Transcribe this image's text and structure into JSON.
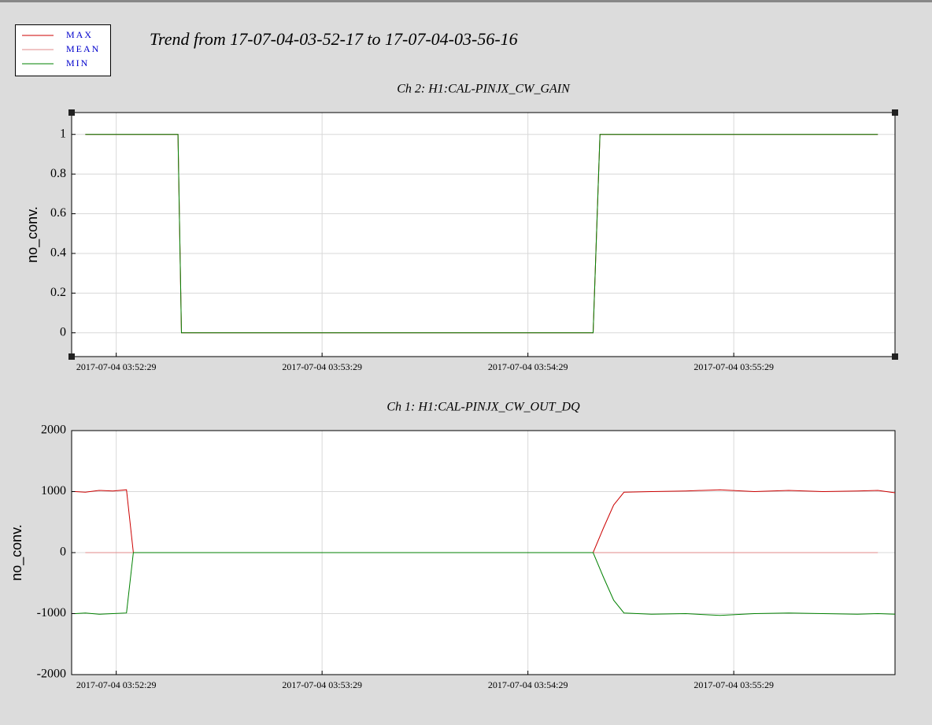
{
  "title": "Trend from 17-07-04-03-52-17 to 17-07-04-03-56-16",
  "chart_data": [
    {
      "type": "line",
      "title": "Ch 2: H1:CAL-PINJX_CW_GAIN",
      "y_label": "no_conv.",
      "x": [
        "2017-07-04 03:52:20",
        "2017-07-04 03:52:47",
        "2017-07-04 03:52:48",
        "2017-07-04 03:54:48",
        "2017-07-04 03:54:50",
        "2017-07-04 03:56:11"
      ],
      "series": [
        {
          "name": "MAX",
          "color": "#cc0000",
          "values": [
            1,
            1,
            0,
            0,
            1,
            1
          ]
        },
        {
          "name": "MEAN",
          "color": "#e08a8a",
          "values": [
            1,
            1,
            0,
            0,
            1,
            1
          ]
        },
        {
          "name": "MIN",
          "color": "#008000",
          "values": [
            1,
            1,
            0,
            0,
            1,
            1
          ]
        }
      ],
      "xlim": [
        "2017-07-04 03:52:16",
        "2017-07-04 03:56:16"
      ],
      "xticks": [
        "2017-07-04 03:52:29",
        "2017-07-04 03:53:29",
        "2017-07-04 03:54:29",
        "2017-07-04 03:55:29"
      ],
      "ylim": [
        -0.12,
        1.11
      ],
      "yticks": [
        0,
        0.2,
        0.4,
        0.6,
        0.8,
        1
      ],
      "grid": true
    },
    {
      "type": "line",
      "title": "Ch 1: H1:CAL-PINJX_CW_OUT_DQ",
      "y_label": "no_conv.",
      "x": [
        "2017-07-04 03:52:17",
        "2017-07-04 03:52:20",
        "2017-07-04 03:52:24",
        "2017-07-04 03:52:28",
        "2017-07-04 03:52:32",
        "2017-07-04 03:52:34",
        "2017-07-04 03:54:48",
        "2017-07-04 03:54:51",
        "2017-07-04 03:54:54",
        "2017-07-04 03:54:57",
        "2017-07-04 03:55:05",
        "2017-07-04 03:55:15",
        "2017-07-04 03:55:25",
        "2017-07-04 03:55:35",
        "2017-07-04 03:55:45",
        "2017-07-04 03:55:55",
        "2017-07-04 03:56:05",
        "2017-07-04 03:56:11",
        "2017-07-04 03:56:16"
      ],
      "series": [
        {
          "name": "MAX",
          "color": "#cc0000",
          "values": [
            1000,
            990,
            1020,
            1010,
            1030,
            0,
            0,
            400,
            780,
            990,
            1000,
            1010,
            1030,
            1000,
            1020,
            1000,
            1010,
            1020,
            980
          ]
        },
        {
          "name": "MEAN",
          "color": "#e08a8a",
          "values": [
            null,
            0,
            0,
            0,
            0,
            0,
            0,
            0,
            0,
            0,
            0,
            0,
            0,
            0,
            0,
            0,
            0,
            0,
            null
          ]
        },
        {
          "name": "MIN",
          "color": "#008000",
          "values": [
            -1000,
            -990,
            -1010,
            -1000,
            -990,
            0,
            0,
            -400,
            -780,
            -990,
            -1010,
            -1000,
            -1030,
            -1000,
            -990,
            -1000,
            -1010,
            -1000,
            -1010
          ]
        }
      ],
      "xlim": [
        "2017-07-04 03:52:16",
        "2017-07-04 03:56:16"
      ],
      "xticks": [
        "2017-07-04 03:52:29",
        "2017-07-04 03:53:29",
        "2017-07-04 03:54:29",
        "2017-07-04 03:55:29"
      ],
      "ylim": [
        -2000,
        2000
      ],
      "yticks": [
        -2000,
        -1000,
        0,
        1000,
        2000
      ],
      "grid": true
    }
  ]
}
